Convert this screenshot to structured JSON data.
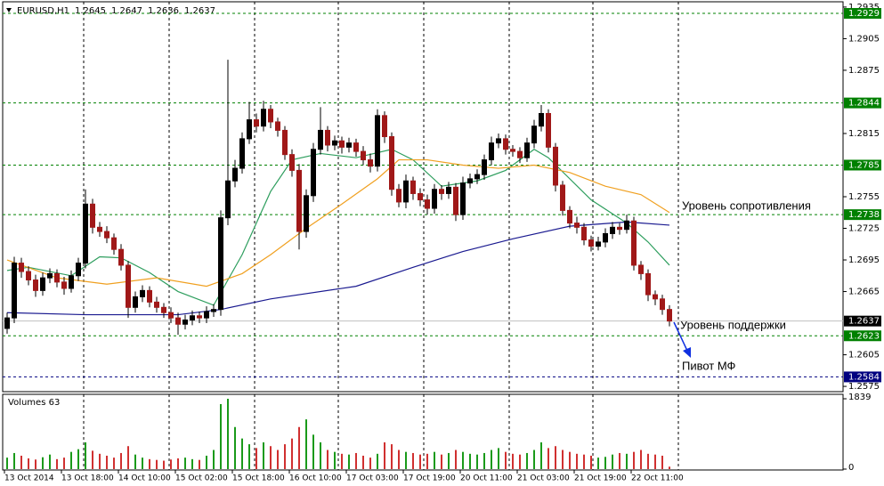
{
  "chart_data": {
    "type": "candlestick",
    "symbol": "EURUSD,H1",
    "quote": [
      1.2645,
      1.2647,
      1.2636,
      1.2637
    ],
    "x_labels": [
      "13 Oct 2014",
      "13 Oct 18:00",
      "14 Oct 10:00",
      "15 Oct 02:00",
      "15 Oct 18:00",
      "16 Oct 10:00",
      "17 Oct 03:00",
      "17 Oct 19:00",
      "20 Oct 11:00",
      "21 Oct 03:00",
      "21 Oct 19:00",
      "22 Oct 11:00"
    ],
    "open": [
      1.263,
      1.264,
      1.2692,
      1.2684,
      1.2676,
      1.2666,
      1.2678,
      1.2682,
      1.2674,
      1.2668,
      1.268,
      1.2692,
      1.2748,
      1.2726,
      1.2722,
      1.2716,
      1.2705,
      1.269,
      1.265,
      1.266,
      1.2666,
      1.2655,
      1.265,
      1.2645,
      1.264,
      1.2634,
      1.2638,
      1.2642,
      1.264,
      1.2646,
      1.2648,
      1.2735,
      1.277,
      1.2782,
      1.281,
      1.2828,
      1.2822,
      1.2838,
      1.2826,
      1.2818,
      1.2795,
      1.278,
      1.2722,
      1.2756,
      1.28,
      1.2818,
      1.2804,
      1.2808,
      1.2802,
      1.2806,
      1.2798,
      1.279,
      1.2784,
      1.2832,
      1.2812,
      1.2762,
      1.275,
      1.277,
      1.2758,
      1.2752,
      1.2744,
      1.2762,
      1.2758,
      1.2764,
      1.2738,
      1.2768,
      1.2772,
      1.2776,
      1.279,
      1.2806,
      1.281,
      1.28,
      1.2798,
      1.2792,
      1.2806,
      1.2822,
      1.2834,
      1.2802,
      1.2766,
      1.2742,
      1.273,
      1.2726,
      1.2714,
      1.2708,
      1.2712,
      1.272,
      1.2726,
      1.2724,
      1.2732,
      1.269,
      1.2682,
      1.2662,
      1.2658,
      1.2648
    ],
    "high": [
      1.2645,
      1.2698,
      1.2697,
      1.2689,
      1.2681,
      1.2683,
      1.2687,
      1.2686,
      1.2679,
      1.2685,
      1.2697,
      1.2762,
      1.2753,
      1.2731,
      1.2727,
      1.272,
      1.271,
      1.2694,
      1.2665,
      1.2671,
      1.267,
      1.266,
      1.2654,
      1.265,
      1.2645,
      1.2643,
      1.2647,
      1.2646,
      1.2651,
      1.2653,
      1.2742,
      1.2885,
      1.279,
      1.2816,
      1.2845,
      1.2834,
      1.2846,
      1.2842,
      1.283,
      1.2822,
      1.28,
      1.2786,
      1.2762,
      1.2806,
      1.284,
      1.2822,
      1.2813,
      1.2812,
      1.2811,
      1.281,
      1.2803,
      1.2796,
      1.2838,
      1.2836,
      1.2816,
      1.2767,
      1.2776,
      1.2774,
      1.2763,
      1.2757,
      1.2767,
      1.2766,
      1.2769,
      1.2768,
      1.2774,
      1.2777,
      1.2781,
      1.2795,
      1.2812,
      1.2815,
      1.2814,
      1.2804,
      1.2802,
      1.2811,
      1.2828,
      1.2842,
      1.2838,
      1.2806,
      1.277,
      1.2746,
      1.2736,
      1.273,
      1.2718,
      1.2717,
      1.2725,
      1.2731,
      1.273,
      1.2738,
      1.2736,
      1.2694,
      1.2686,
      1.2666,
      1.2662,
      1.2652
    ],
    "low": [
      1.2625,
      1.2635,
      1.2678,
      1.2671,
      1.266,
      1.2661,
      1.2673,
      1.2669,
      1.2662,
      1.2664,
      1.2675,
      1.2687,
      1.272,
      1.2717,
      1.2711,
      1.27,
      1.2685,
      1.264,
      1.2645,
      1.2655,
      1.265,
      1.2645,
      1.264,
      1.2635,
      1.2624,
      1.2629,
      1.2633,
      1.2635,
      1.2635,
      1.2641,
      1.2642,
      1.2728,
      1.2764,
      1.2777,
      1.2805,
      1.2816,
      1.2817,
      1.282,
      1.2812,
      1.279,
      1.2774,
      1.2705,
      1.2716,
      1.275,
      1.2795,
      1.2798,
      1.2799,
      1.2796,
      1.2797,
      1.2793,
      1.2785,
      1.2778,
      1.2779,
      1.2806,
      1.2756,
      1.2745,
      1.2744,
      1.2752,
      1.2746,
      1.2738,
      1.2739,
      1.2752,
      1.2753,
      1.2732,
      1.2733,
      1.2763,
      1.2767,
      1.2771,
      1.2785,
      1.2801,
      1.2795,
      1.2793,
      1.2787,
      1.2788,
      1.2801,
      1.2817,
      1.2797,
      1.276,
      1.2737,
      1.2725,
      1.272,
      1.2709,
      1.2703,
      1.2704,
      1.2707,
      1.2715,
      1.2719,
      1.272,
      1.2685,
      1.2676,
      1.2656,
      1.2652,
      1.2643,
      1.2632
    ],
    "close": [
      1.264,
      1.2692,
      1.2684,
      1.2676,
      1.2666,
      1.2678,
      1.2682,
      1.2674,
      1.2668,
      1.268,
      1.2692,
      1.2748,
      1.2726,
      1.2722,
      1.2716,
      1.2705,
      1.269,
      1.265,
      1.266,
      1.2666,
      1.2655,
      1.265,
      1.2645,
      1.264,
      1.2634,
      1.2638,
      1.2642,
      1.264,
      1.2646,
      1.2648,
      1.2735,
      1.277,
      1.2782,
      1.281,
      1.2828,
      1.2822,
      1.2838,
      1.2826,
      1.2818,
      1.2795,
      1.278,
      1.2722,
      1.2756,
      1.28,
      1.2818,
      1.2804,
      1.2808,
      1.2802,
      1.2806,
      1.2798,
      1.279,
      1.2784,
      1.2832,
      1.2812,
      1.2762,
      1.275,
      1.277,
      1.2758,
      1.2752,
      1.2744,
      1.2762,
      1.2758,
      1.2764,
      1.2738,
      1.2768,
      1.2772,
      1.2776,
      1.279,
      1.2806,
      1.281,
      1.28,
      1.2798,
      1.2792,
      1.2806,
      1.2822,
      1.2834,
      1.2802,
      1.2766,
      1.2742,
      1.273,
      1.2726,
      1.2714,
      1.2708,
      1.2712,
      1.272,
      1.2726,
      1.2724,
      1.2732,
      1.269,
      1.2682,
      1.2662,
      1.2658,
      1.2648,
      1.2637
    ],
    "up_color": "#000000",
    "down_color": "#a01818",
    "ylim": [
      1.257,
      1.294
    ],
    "yticks": [
      1.2935,
      1.2905,
      1.2875,
      1.2815,
      1.2755,
      1.2725,
      1.2695,
      1.2665,
      1.2605,
      1.2575
    ],
    "levels": [
      {
        "value": 1.2929,
        "color": "#008000"
      },
      {
        "value": 1.2844,
        "color": "#008000"
      },
      {
        "value": 1.2785,
        "color": "#008000"
      },
      {
        "value": 1.2738,
        "color": "#008000"
      },
      {
        "value": 1.2623,
        "color": "#008000"
      },
      {
        "value": 1.2584,
        "color": "#000080"
      }
    ],
    "last_price": 1.2637,
    "lines": [
      {
        "color": "#2e9e5e",
        "x": [
          0,
          3,
          9,
          13,
          16,
          20,
          24,
          29,
          33,
          37,
          40,
          44,
          49,
          54,
          57,
          61,
          66,
          70,
          74,
          76,
          82,
          87,
          90,
          93
        ],
        "values": [
          1.2685,
          1.2688,
          1.268,
          1.2698,
          1.2697,
          1.2683,
          1.2665,
          1.2652,
          1.27,
          1.276,
          1.279,
          1.2796,
          1.2792,
          1.28,
          1.279,
          1.2765,
          1.277,
          1.278,
          1.28,
          1.2792,
          1.2752,
          1.273,
          1.2712,
          1.269
        ]
      },
      {
        "color": "#f0a020",
        "x": [
          0,
          7,
          14,
          21,
          28,
          33,
          37,
          42,
          47,
          52,
          55,
          59,
          64,
          69,
          74,
          79,
          84,
          89,
          93
        ],
        "values": [
          1.2695,
          1.2678,
          1.2672,
          1.2678,
          1.267,
          1.2682,
          1.27,
          1.2725,
          1.2748,
          1.2772,
          1.279,
          1.279,
          1.2785,
          1.2782,
          1.2785,
          1.2778,
          1.2765,
          1.2757,
          1.274
        ]
      },
      {
        "color": "#1a1a90",
        "x": [
          0,
          11,
          24,
          30,
          37,
          49,
          57,
          64,
          71,
          79,
          87,
          93
        ],
        "values": [
          1.2645,
          1.2643,
          1.2643,
          1.2648,
          1.2658,
          1.267,
          1.2688,
          1.2703,
          1.2715,
          1.2727,
          1.2731,
          1.2728
        ]
      }
    ],
    "annotations": [
      "Уровень сопротивления",
      "Уровень поддержки",
      "Пивот МФ"
    ],
    "volume": {
      "title": "Volumes 63",
      "ylim": [
        0,
        1839
      ],
      "yticks": [
        1839,
        0
      ],
      "values": [
        300,
        420,
        350,
        280,
        250,
        310,
        380,
        260,
        300,
        450,
        520,
        700,
        480,
        400,
        350,
        300,
        420,
        600,
        380,
        300,
        260,
        240,
        220,
        250,
        280,
        300,
        260,
        240,
        350,
        500,
        1700,
        1839,
        1100,
        800,
        650,
        550,
        700,
        600,
        500,
        650,
        800,
        1100,
        1300,
        900,
        700,
        500,
        450,
        400,
        380,
        420,
        350,
        300,
        400,
        700,
        650,
        500,
        450,
        420,
        380,
        400,
        450,
        380,
        420,
        500,
        450,
        400,
        380,
        420,
        500,
        550,
        450,
        400,
        380,
        420,
        500,
        700,
        550,
        600,
        500,
        450,
        400,
        380,
        350,
        300,
        320,
        380,
        420,
        400,
        450,
        500,
        400,
        380,
        350,
        63
      ]
    }
  }
}
